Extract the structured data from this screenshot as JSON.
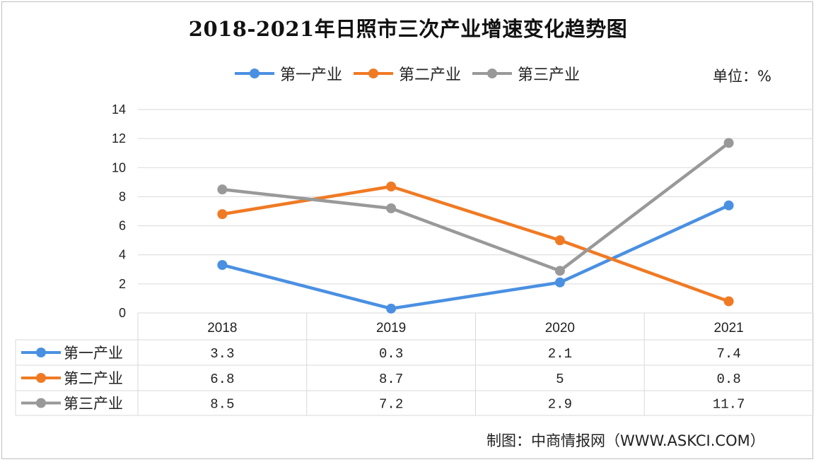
{
  "title": "2018-2021年日照市三次产业增速变化趋势图",
  "unit_label": "单位：%",
  "source_label": "制图：中商情报网（WWW.ASKCI.COM）",
  "colors": {
    "primary": "#4a90e2",
    "secondary": "#f07a24",
    "tertiary": "#999999",
    "grid": "#d9d9d9"
  },
  "chart_data": {
    "type": "line",
    "title": "2018-2021年日照市三次产业增速变化趋势图",
    "categories": [
      "2018",
      "2019",
      "2020",
      "2021"
    ],
    "series": [
      {
        "name": "第一产业",
        "color": "#4a90e2",
        "values": [
          3.3,
          0.3,
          2.1,
          7.4
        ],
        "labels": [
          "3.3",
          "0.3",
          "2.1",
          "7.4"
        ]
      },
      {
        "name": "第二产业",
        "color": "#f07a24",
        "values": [
          6.8,
          8.7,
          5,
          0.8
        ],
        "labels": [
          "6.8",
          "8.7",
          "5",
          "0.8"
        ]
      },
      {
        "name": "第三产业",
        "color": "#999999",
        "values": [
          8.5,
          7.2,
          2.9,
          11.7
        ],
        "labels": [
          "8.5",
          "7.2",
          "2.9",
          "11.7"
        ]
      }
    ],
    "yticks": [
      "0",
      "2",
      "4",
      "6",
      "8",
      "10",
      "12",
      "14"
    ],
    "ylim": [
      0,
      14
    ],
    "grid": true,
    "legend_position": "top",
    "data_table": true
  }
}
